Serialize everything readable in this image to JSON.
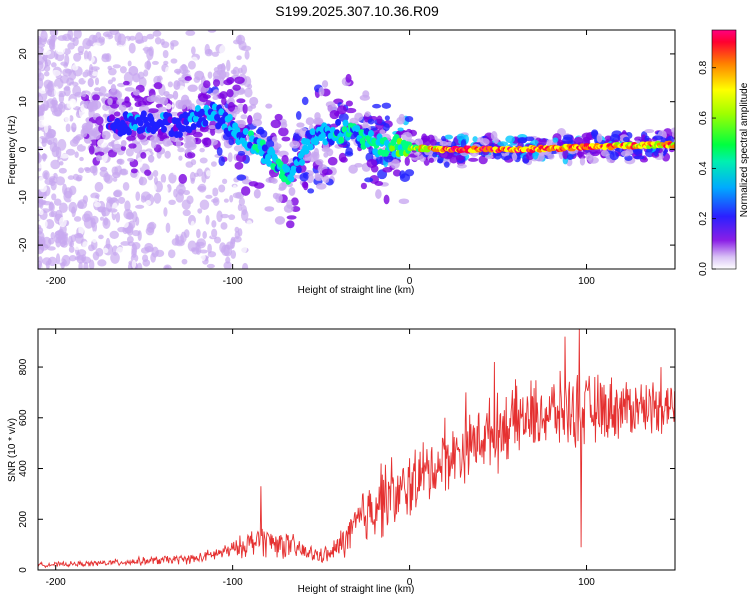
{
  "figure_title": "S199.2025.307.10.36.R09",
  "colors": {
    "snr_line": "#e53030",
    "axis": "#000000",
    "background": "#ffffff"
  },
  "chart_data": [
    {
      "type": "heatmap",
      "name": "spectrogram",
      "xlabel": "Height of straight line (km)",
      "ylabel": "Frequency (Hz)",
      "xlim": [
        -210,
        150
      ],
      "ylim": [
        -25,
        25
      ],
      "xticks": [
        -200,
        -100,
        0,
        100
      ],
      "yticks": [
        -20,
        -10,
        0,
        10,
        20
      ],
      "colorbar": {
        "label": "Normalized spectral amplitude",
        "range": [
          0,
          0.95
        ],
        "ticks": [
          0.0,
          0.2,
          0.4,
          0.6,
          0.8
        ],
        "colormap": [
          "#ffffff",
          "#c8a8f0",
          "#7b00e0",
          "#2020ff",
          "#00c8ff",
          "#00ff80",
          "#80ff00",
          "#ffff00",
          "#ff8000",
          "#ff0040",
          "#ff0080"
        ]
      },
      "ridge": [
        {
          "x": -170,
          "f": 5,
          "a": 0.3
        },
        {
          "x": -150,
          "f": 6,
          "a": 0.35
        },
        {
          "x": -130,
          "f": 5,
          "a": 0.3
        },
        {
          "x": -112,
          "f": 8,
          "a": 0.4
        },
        {
          "x": -95,
          "f": 3,
          "a": 0.4
        },
        {
          "x": -80,
          "f": -1,
          "a": 0.45
        },
        {
          "x": -68,
          "f": -6,
          "a": 0.45
        },
        {
          "x": -55,
          "f": 3,
          "a": 0.4
        },
        {
          "x": -35,
          "f": 4,
          "a": 0.45
        },
        {
          "x": -20,
          "f": 1,
          "a": 0.45
        },
        {
          "x": -5,
          "f": 0.5,
          "a": 0.55
        },
        {
          "x": 20,
          "f": 0,
          "a": 0.9
        },
        {
          "x": 60,
          "f": 0,
          "a": 0.9
        },
        {
          "x": 100,
          "f": 0.5,
          "a": 0.85
        },
        {
          "x": 140,
          "f": 1,
          "a": 0.8
        }
      ]
    },
    {
      "type": "line",
      "name": "snr",
      "xlabel": "Height of straight line (km)",
      "ylabel": "SNR (10 * v/v)",
      "xlim": [
        -210,
        150
      ],
      "ylim": [
        0,
        950
      ],
      "xticks": [
        -200,
        -100,
        0,
        100
      ],
      "yticks": [
        0,
        200,
        400,
        600,
        800
      ],
      "trend_x": [
        -210,
        -180,
        -150,
        -120,
        -100,
        -85,
        -70,
        -55,
        -45,
        -35,
        -25,
        -15,
        -5,
        0,
        20,
        40,
        60,
        80,
        100,
        120,
        150
      ],
      "trend_y": [
        20,
        25,
        35,
        45,
        80,
        120,
        100,
        60,
        60,
        130,
        220,
        300,
        290,
        340,
        430,
        520,
        590,
        620,
        630,
        640,
        650
      ],
      "noise_x": [
        -210,
        -180,
        -150,
        -120,
        -100,
        -85,
        -70,
        -55,
        -45,
        -35,
        -25,
        -15,
        -5,
        0,
        20,
        40,
        60,
        80,
        100,
        120,
        150
      ],
      "noise_amp": [
        8,
        10,
        15,
        18,
        30,
        60,
        50,
        30,
        30,
        70,
        120,
        150,
        120,
        130,
        110,
        120,
        130,
        130,
        130,
        110,
        90
      ],
      "spikes": [
        {
          "x": -84,
          "y": 330
        },
        {
          "x": -16,
          "y": 420
        },
        {
          "x": 32,
          "y": 700
        },
        {
          "x": 48,
          "y": 820
        },
        {
          "x": 88,
          "y": 920
        },
        {
          "x": 96,
          "y": 950
        },
        {
          "x": 97,
          "y": 90
        },
        {
          "x": 142,
          "y": 800
        },
        {
          "x": 50,
          "y": 380
        },
        {
          "x": 20,
          "y": 600
        }
      ]
    }
  ]
}
